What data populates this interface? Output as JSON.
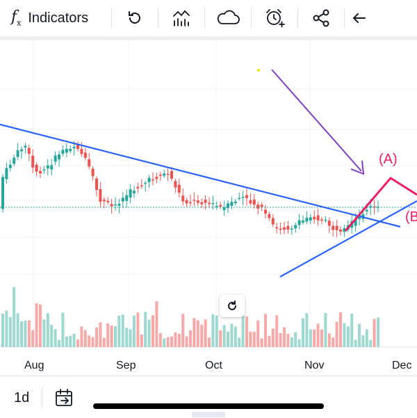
{
  "toolbar": {
    "indicators_label": "Indicators",
    "items": [
      {
        "name": "indicators",
        "icon": "function-icon"
      },
      {
        "name": "replay",
        "icon": "undo-arrow-icon"
      },
      {
        "name": "chart-type",
        "icon": "bar-line-chart-icon"
      },
      {
        "name": "cloud",
        "icon": "cloud-icon"
      },
      {
        "name": "alert",
        "icon": "alarm-clock-plus-icon"
      },
      {
        "name": "share",
        "icon": "share-icon"
      },
      {
        "name": "back",
        "icon": "arrow-left-icon"
      }
    ]
  },
  "chart_data": {
    "type": "candlestick",
    "x_labels": [
      "Aug",
      "Sep",
      "Oct",
      "Nov",
      "Dec"
    ],
    "annotations": [
      {
        "label": "(A)",
        "color": "#e91e63"
      },
      {
        "label": "(B",
        "color": "#e91e63"
      }
    ],
    "colors": {
      "up": "#26a69a",
      "down": "#ef5350",
      "trendline": "#2962ff",
      "arrow": "#7e3fbf",
      "wave": "#e91e63",
      "gridline": "#f0f3fa"
    },
    "grid": true,
    "volume_pane": true
  },
  "bottom": {
    "interval": "1d",
    "calendar_icon": "calendar-goto-icon"
  }
}
